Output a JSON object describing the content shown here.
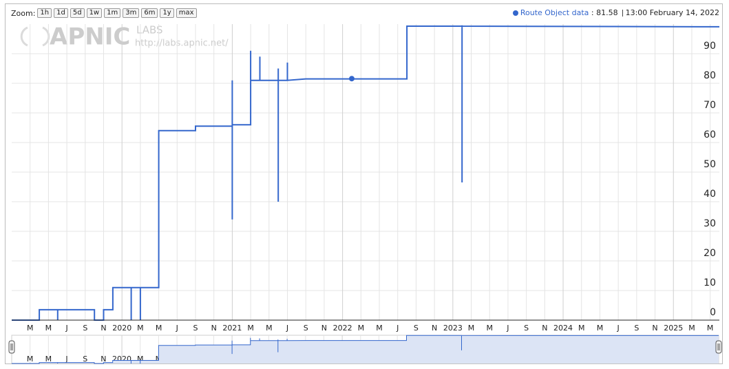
{
  "zoom_label": "Zoom:",
  "zoom_buttons": [
    "1h",
    "1d",
    "5d",
    "1w",
    "1m",
    "3m",
    "6m",
    "1y",
    "max"
  ],
  "watermark": [
    "APNIC",
    "LABS",
    "http://labs.apnic.net/"
  ],
  "chart_data": {
    "type": "line",
    "x": [
      "2019-01",
      "2019-04",
      "2019-04",
      "2019-06",
      "2019-06",
      "2019-06",
      "2019-10",
      "2019-10",
      "2019-11",
      "2019-11",
      "2019-12",
      "2019-12",
      "2020-02",
      "2020-02",
      "2020-02",
      "2020-03",
      "2020-03",
      "2020-03",
      "2020-05",
      "2020-05",
      "2020-09",
      "2020-09",
      "2021-01",
      "2021-01",
      "2021-01",
      "2021-01",
      "2021-03",
      "2021-03",
      "2021-03",
      "2021-04",
      "2021-04",
      "2021-04",
      "2021-04",
      "2021-04",
      "2021-06",
      "2021-06",
      "2021-06",
      "2021-06",
      "2021-06",
      "2021-07",
      "2021-07",
      "2021-07",
      "2021-09",
      "2022-08",
      "2022-08",
      "2023-02",
      "2023-02",
      "2023-02",
      "2023-02",
      "2025-06"
    ],
    "series": [
      {
        "name": "Route Object data",
        "color": "#3366cc",
        "values": [
          0,
          0,
          3.5,
          3.5,
          0,
          3.5,
          3.5,
          0,
          0,
          3.5,
          3.5,
          11,
          11,
          0,
          11,
          11,
          0,
          11,
          11,
          64,
          64,
          65.5,
          65.5,
          81,
          34,
          66,
          66,
          91,
          81,
          81,
          88,
          81,
          89,
          81,
          81,
          40,
          81,
          85,
          81,
          81,
          87,
          81,
          81.5,
          81.5,
          99.3,
          99.3,
          46.5,
          99.6,
          99.3,
          99.1
        ]
      }
    ],
    "highlight": {
      "x": "2022-02",
      "value": 81.58,
      "label": "13:00 February 14, 2022"
    },
    "xlim": [
      "2019-01",
      "2025-06"
    ],
    "xticks": [
      {
        "value": "2019-03",
        "label": "M"
      },
      {
        "value": "2019-05",
        "label": "M"
      },
      {
        "value": "2019-07",
        "label": "J"
      },
      {
        "value": "2019-09",
        "label": "S"
      },
      {
        "value": "2019-11",
        "label": "N"
      },
      {
        "value": "2020-01",
        "label": "2020"
      },
      {
        "value": "2020-03",
        "label": "M"
      },
      {
        "value": "2020-05",
        "label": "M"
      },
      {
        "value": "2020-07",
        "label": "J"
      },
      {
        "value": "2020-09",
        "label": "S"
      },
      {
        "value": "2020-11",
        "label": "N"
      },
      {
        "value": "2021-01",
        "label": "2021"
      },
      {
        "value": "2021-03",
        "label": "M"
      },
      {
        "value": "2021-05",
        "label": "M"
      },
      {
        "value": "2021-07",
        "label": "J"
      },
      {
        "value": "2021-09",
        "label": "S"
      },
      {
        "value": "2021-11",
        "label": "N"
      },
      {
        "value": "2022-01",
        "label": "2022"
      },
      {
        "value": "2022-03",
        "label": "M"
      },
      {
        "value": "2022-05",
        "label": "M"
      },
      {
        "value": "2022-07",
        "label": "J"
      },
      {
        "value": "2022-09",
        "label": "S"
      },
      {
        "value": "2022-11",
        "label": "N"
      },
      {
        "value": "2023-01",
        "label": "2023"
      },
      {
        "value": "2023-03",
        "label": "M"
      },
      {
        "value": "2023-05",
        "label": "M"
      },
      {
        "value": "2023-07",
        "label": "J"
      },
      {
        "value": "2023-09",
        "label": "S"
      },
      {
        "value": "2023-11",
        "label": "N"
      },
      {
        "value": "2024-01",
        "label": "2024"
      },
      {
        "value": "2024-03",
        "label": "M"
      },
      {
        "value": "2024-05",
        "label": "M"
      },
      {
        "value": "2024-07",
        "label": "J"
      },
      {
        "value": "2024-09",
        "label": "S"
      },
      {
        "value": "2024-11",
        "label": "N"
      },
      {
        "value": "2025-01",
        "label": "2025"
      },
      {
        "value": "2025-03",
        "label": "M"
      },
      {
        "value": "2025-05",
        "label": "M"
      }
    ],
    "ylim": [
      0,
      100
    ],
    "yticks": [
      0,
      10,
      20,
      30,
      40,
      50,
      60,
      70,
      80,
      90
    ],
    "grid": true
  }
}
